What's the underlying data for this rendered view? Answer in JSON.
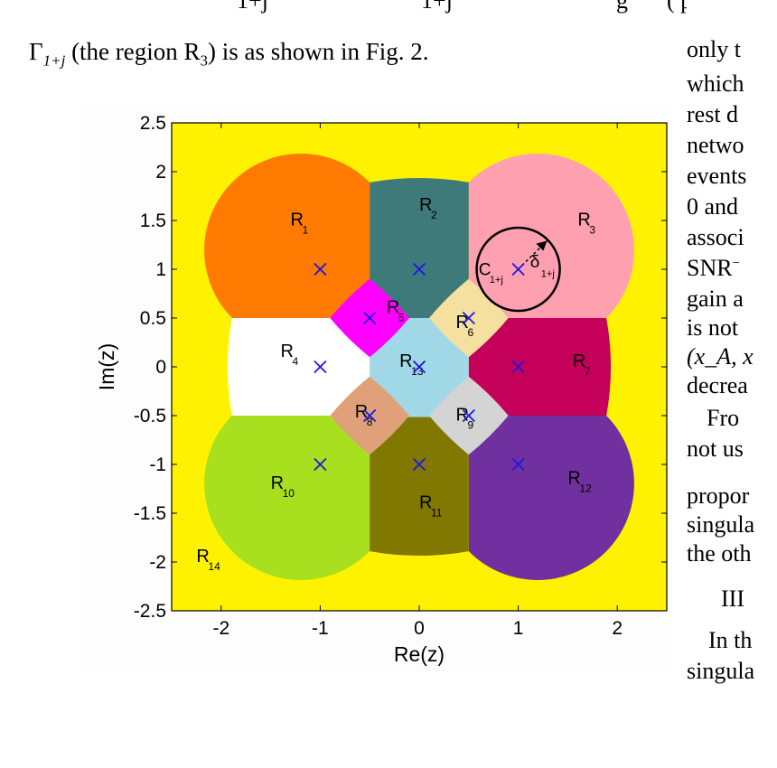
{
  "top_fragments": [
    "1+j",
    "1+j",
    "g",
    "( p"
  ],
  "caption": {
    "symbol": "Γ",
    "subscript": "1+j",
    "text": " (the region R",
    "region_sub": "3",
    "tail": ") is as shown in Fig. 2."
  },
  "right_column": [
    "only t",
    "which",
    "rest d",
    "netwo",
    "events",
    "0 and",
    "associ",
    "SNR",
    "gain a",
    "is not",
    "(x_A, x",
    "decrea",
    "Fro",
    "not us",
    "propor",
    "singula",
    "the oth",
    "III",
    "In th",
    "singula"
  ],
  "chart_data": {
    "type": "region_map",
    "xlabel": "Re(z)",
    "ylabel": "Im(z)",
    "xlim": [
      -2.5,
      2.5
    ],
    "ylim": [
      -2.5,
      2.5
    ],
    "xticks": [
      "-2",
      "-1",
      "0",
      "1",
      "2"
    ],
    "xtick_values": [
      -2,
      -1,
      0,
      1,
      2
    ],
    "yticks": [
      "2.5",
      "2",
      "1.5",
      "1",
      "0.5",
      "0",
      "-0.5",
      "-1",
      "-1.5",
      "-2",
      "-2.5"
    ],
    "ytick_values": [
      2.5,
      2,
      1.5,
      1,
      0.5,
      0,
      -0.5,
      -1,
      -1.5,
      -2,
      -2.5
    ],
    "background_color": "#fff200",
    "markers": [
      [
        -1,
        1
      ],
      [
        0,
        1
      ],
      [
        1,
        1
      ],
      [
        -0.5,
        0.5
      ],
      [
        0.5,
        0.5
      ],
      [
        -1,
        0
      ],
      [
        0,
        0
      ],
      [
        1,
        0
      ],
      [
        -0.5,
        -0.5
      ],
      [
        0.5,
        -0.5
      ],
      [
        -1,
        -1
      ],
      [
        0,
        -1
      ],
      [
        1,
        -1
      ]
    ],
    "regions": [
      {
        "label": "R",
        "sub": "1",
        "color": "#ff7a00",
        "at": [
          -1.3,
          1.45
        ]
      },
      {
        "label": "R",
        "sub": "2",
        "color": "#3e7a7a",
        "at": [
          0,
          1.6
        ]
      },
      {
        "label": "R",
        "sub": "3",
        "color": "#ffa0b0",
        "at": [
          1.6,
          1.45
        ]
      },
      {
        "label": "R",
        "sub": "4",
        "color": "#ffffff",
        "at": [
          -1.4,
          0.1
        ]
      },
      {
        "label": "R",
        "sub": "5",
        "color": "#ff00ff",
        "at": [
          -0.33,
          0.55
        ]
      },
      {
        "label": "R",
        "sub": "6",
        "color": "#f5e0a0",
        "at": [
          0.37,
          0.4
        ]
      },
      {
        "label": "R",
        "sub": "7",
        "color": "#c4005a",
        "at": [
          1.55,
          0.0
        ]
      },
      {
        "label": "R",
        "sub": "8",
        "color": "#e0a07a",
        "at": [
          -0.65,
          -0.52
        ]
      },
      {
        "label": "R",
        "sub": "9",
        "color": "#d4d4d4",
        "at": [
          0.37,
          -0.55
        ]
      },
      {
        "label": "R",
        "sub": "10",
        "color": "#a8e020",
        "at": [
          -1.5,
          -1.25
        ]
      },
      {
        "label": "R",
        "sub": "11",
        "color": "#807800",
        "at": [
          0,
          -1.45
        ]
      },
      {
        "label": "R",
        "sub": "12",
        "color": "#7030a0",
        "at": [
          1.5,
          -1.2
        ]
      },
      {
        "label": "R",
        "sub": "13",
        "color": "#a0d8e8",
        "at": [
          -0.2,
          0.0
        ]
      },
      {
        "label": "R",
        "sub": "14",
        "color": "#fff200",
        "at": [
          -2.25,
          -2.0
        ]
      }
    ],
    "circle": {
      "center": [
        1,
        1
      ],
      "radius": 0.42,
      "label": "C",
      "label_sub": "1+j",
      "delta_label": "δ",
      "delta_sub": "1+j"
    }
  }
}
